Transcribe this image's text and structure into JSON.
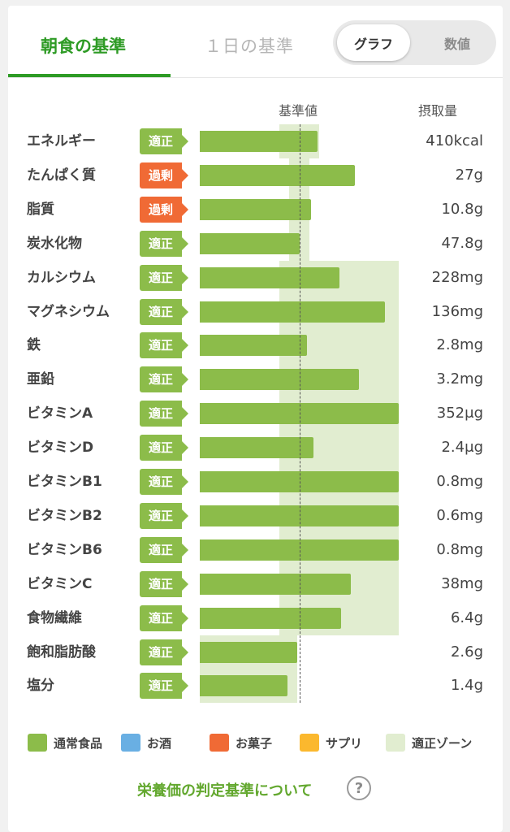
{
  "tabs": {
    "breakfast": "朝食の基準",
    "daily": "１日の基準"
  },
  "view_toggle": {
    "graph": "グラフ",
    "numbers": "数値"
  },
  "columns": {
    "reference": "基準値",
    "intake": "摂取量"
  },
  "colors": {
    "accent": "#2e9b25",
    "bar_food": "#8cbc4a",
    "badge_ok": "#8cbc4a",
    "badge_over": "#f06a35",
    "zone": "#e1edd0"
  },
  "chart_data": {
    "type": "bar",
    "orientation": "horizontal",
    "reference_line": "基準値",
    "rows": [
      {
        "name": "エネルギー",
        "status": "適正",
        "level": "ok",
        "amount": "410kcal",
        "value": 0.59,
        "zone": [
          0.4,
          0.6
        ]
      },
      {
        "name": "たんぱく質",
        "status": "過剰",
        "level": "over",
        "amount": "27g",
        "value": 0.78,
        "zone": [
          0.45,
          0.55
        ]
      },
      {
        "name": "脂質",
        "status": "過剰",
        "level": "over",
        "amount": "10.8g",
        "value": 0.56,
        "zone": [
          0.45,
          0.55
        ]
      },
      {
        "name": "炭水化物",
        "status": "適正",
        "level": "ok",
        "amount": "47.8g",
        "value": 0.5,
        "zone": [
          0.45,
          0.55
        ]
      },
      {
        "name": "カルシウム",
        "status": "適正",
        "level": "ok",
        "amount": "228mg",
        "value": 0.7,
        "zone": [
          0.4,
          1.0
        ]
      },
      {
        "name": "マグネシウム",
        "status": "適正",
        "level": "ok",
        "amount": "136mg",
        "value": 0.93,
        "zone": [
          0.4,
          1.0
        ]
      },
      {
        "name": "鉄",
        "status": "適正",
        "level": "ok",
        "amount": "2.8mg",
        "value": 0.54,
        "zone": [
          0.4,
          1.0
        ]
      },
      {
        "name": "亜鉛",
        "status": "適正",
        "level": "ok",
        "amount": "3.2mg",
        "value": 0.8,
        "zone": [
          0.4,
          1.0
        ]
      },
      {
        "name": "ビタミンA",
        "status": "適正",
        "level": "ok",
        "amount": "352μg",
        "value": 1.0,
        "zone": [
          0.4,
          1.0
        ]
      },
      {
        "name": "ビタミンD",
        "status": "適正",
        "level": "ok",
        "amount": "2.4μg",
        "value": 0.57,
        "zone": [
          0.4,
          1.0
        ]
      },
      {
        "name": "ビタミンB1",
        "status": "適正",
        "level": "ok",
        "amount": "0.8mg",
        "value": 1.0,
        "zone": [
          0.4,
          1.0
        ]
      },
      {
        "name": "ビタミンB2",
        "status": "適正",
        "level": "ok",
        "amount": "0.6mg",
        "value": 1.0,
        "zone": [
          0.4,
          1.0
        ]
      },
      {
        "name": "ビタミンB6",
        "status": "適正",
        "level": "ok",
        "amount": "0.8mg",
        "value": 1.0,
        "zone": [
          0.4,
          1.0
        ]
      },
      {
        "name": "ビタミンC",
        "status": "適正",
        "level": "ok",
        "amount": "38mg",
        "value": 0.76,
        "zone": [
          0.4,
          1.0
        ]
      },
      {
        "name": "食物繊維",
        "status": "適正",
        "level": "ok",
        "amount": "6.4g",
        "value": 0.71,
        "zone": [
          0.4,
          1.0
        ]
      },
      {
        "name": "飽和脂肪酸",
        "status": "適正",
        "level": "ok",
        "amount": "2.6g",
        "value": 0.49,
        "zone": [
          0.0,
          0.49
        ]
      },
      {
        "name": "塩分",
        "status": "適正",
        "level": "ok",
        "amount": "1.4g",
        "value": 0.44,
        "zone": [
          0.0,
          0.49
        ]
      }
    ]
  },
  "legend": [
    {
      "label": "通常食品",
      "color": "#8cbc4a"
    },
    {
      "label": "お酒",
      "color": "#69afe3"
    },
    {
      "label": "お菓子",
      "color": "#f06a35"
    },
    {
      "label": "サプリ",
      "color": "#fbb82e"
    },
    {
      "label": "適正ゾーン",
      "color": "#e1edd0"
    }
  ],
  "footer": {
    "link": "栄養価の判定基準について",
    "help_icon": "?"
  }
}
